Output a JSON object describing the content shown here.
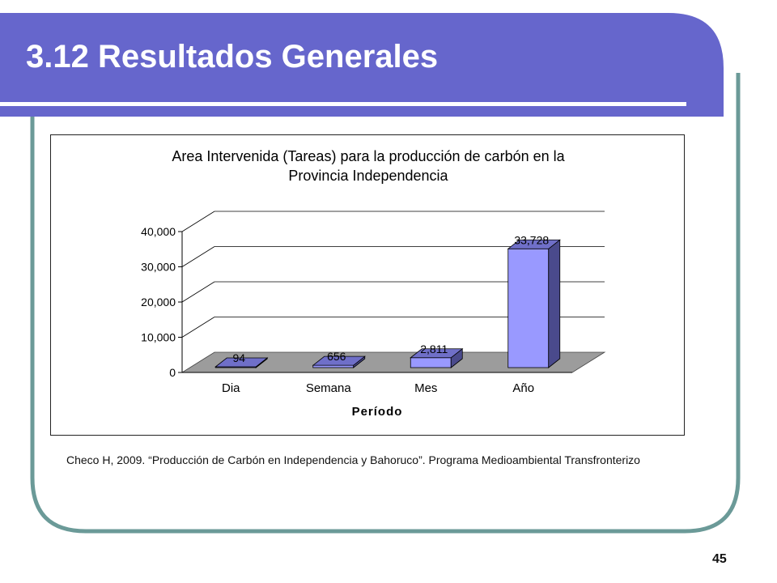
{
  "slide": {
    "title": "3.12 Resultados Generales",
    "source_citation": "Checo H, 2009. “Producción de Carbón en Independencia y Bahoruco”. Programa Medioambiental Transfronterizo",
    "page_number": "45",
    "colors": {
      "title_bar": "#6666CC",
      "frame_border": "#6B9A98",
      "bar_front": "#9999FF",
      "bar_side": "#4A4A8C"
    }
  },
  "chart_data": {
    "type": "bar",
    "title_line1": "Area Intervenida (Tareas) para la producción de carbón en la",
    "title_line2": "Provincia Independencia",
    "xlabel": "Período",
    "ylabel": "",
    "categories": [
      "Dia",
      "Semana",
      "Mes",
      "Año"
    ],
    "values": [
      94,
      656,
      2811,
      33728
    ],
    "data_labels": [
      "94",
      "656",
      "2,811",
      "33,728"
    ],
    "y_ticks": [
      "0",
      "10,000",
      "20,000",
      "30,000",
      "40,000"
    ],
    "ylim": [
      0,
      40000
    ],
    "grid": true,
    "style": "3d-column",
    "legend": "none"
  }
}
